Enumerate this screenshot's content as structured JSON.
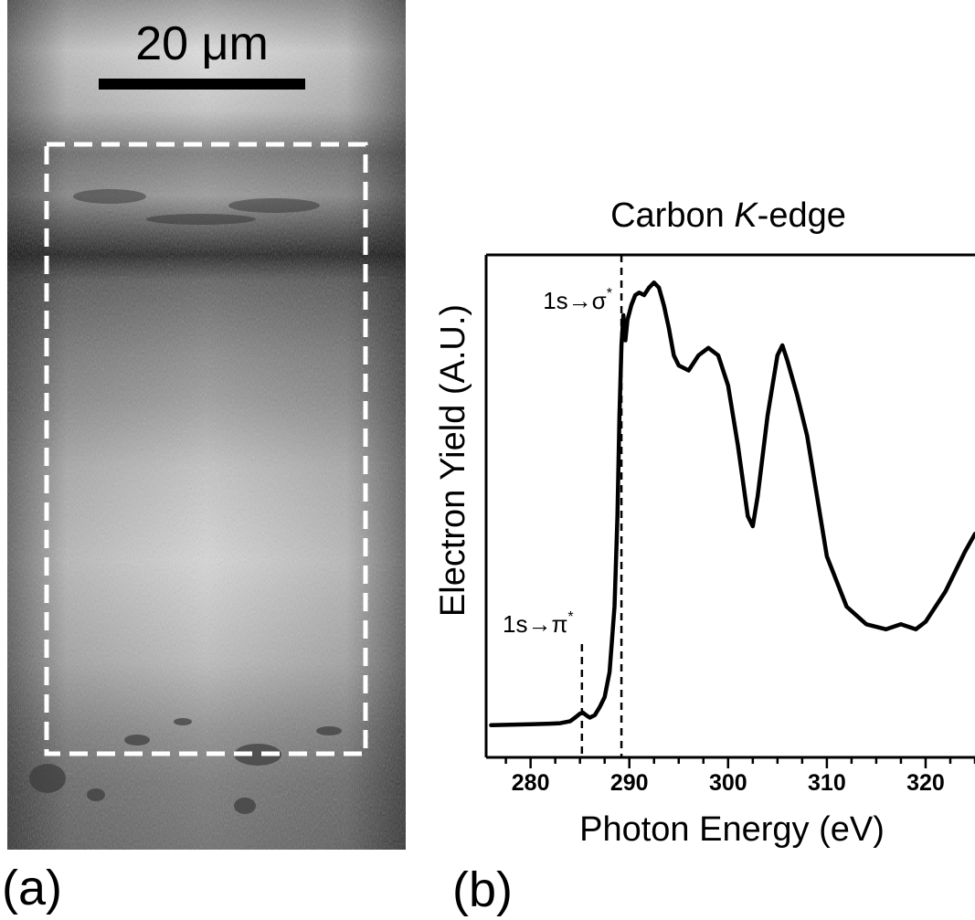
{
  "panel_a": {
    "label": "(a)",
    "scale_bar_label": "20 μm"
  },
  "panel_b": {
    "label": "(b)"
  },
  "chart_data": {
    "type": "line",
    "title_prefix": "Carbon ",
    "title_italic": "K",
    "title_suffix": "-edge",
    "xlabel": "Photon Energy (eV)",
    "ylabel": "Electron Yield (A.U.)",
    "xlim": [
      275.5,
      325
    ],
    "ylim": [
      0,
      1
    ],
    "xticks": [
      280,
      290,
      300,
      310,
      320
    ],
    "yticks_shown": false,
    "grid": false,
    "series": [
      {
        "x": [
          276,
          278,
          280,
          282,
          283,
          284,
          284.5,
          285,
          285.3,
          285.7,
          286,
          286.5,
          287,
          287.5,
          288,
          288.5,
          288.8,
          289.0,
          289.2,
          289.4,
          289.6,
          289.8,
          290.2,
          290.6,
          291,
          291.5,
          292,
          292.5,
          293,
          293.5,
          294,
          294.5,
          295,
          296,
          297,
          298,
          299,
          300,
          301,
          302,
          302.5,
          303,
          304,
          305,
          305.5,
          306,
          307,
          308,
          309,
          310,
          312,
          314,
          316,
          317.5,
          319,
          320,
          321,
          322,
          323,
          324,
          325
        ],
        "y": [
          0.064,
          0.065,
          0.066,
          0.067,
          0.068,
          0.072,
          0.079,
          0.087,
          0.089,
          0.083,
          0.079,
          0.084,
          0.1,
          0.12,
          0.17,
          0.3,
          0.48,
          0.68,
          0.82,
          0.88,
          0.83,
          0.87,
          0.9,
          0.92,
          0.925,
          0.92,
          0.935,
          0.945,
          0.935,
          0.9,
          0.855,
          0.8,
          0.78,
          0.77,
          0.8,
          0.815,
          0.8,
          0.74,
          0.62,
          0.48,
          0.46,
          0.52,
          0.68,
          0.8,
          0.82,
          0.79,
          0.72,
          0.64,
          0.52,
          0.4,
          0.3,
          0.265,
          0.255,
          0.265,
          0.255,
          0.27,
          0.3,
          0.33,
          0.37,
          0.41,
          0.445
        ]
      }
    ],
    "markers": [
      {
        "label": "1s→π",
        "sup": "*",
        "x": 285.2
      },
      {
        "label": "1s→σ",
        "sup": "*",
        "x": 289.2
      }
    ]
  }
}
